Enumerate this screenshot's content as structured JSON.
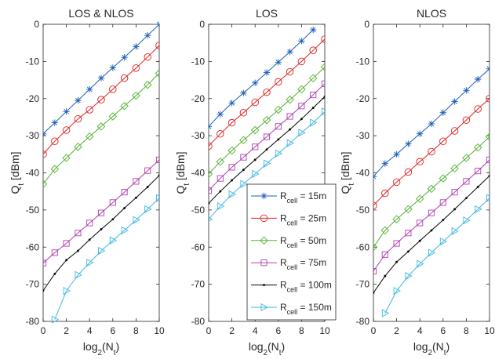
{
  "figure": {
    "series_names": [
      "15m",
      "25m",
      "50m",
      "75m",
      "100m",
      "150m"
    ],
    "legend_prefix": "R",
    "legend_subscript": "cell",
    "legend_sep": " = ",
    "colors": [
      "#1f5fb4",
      "#e02020",
      "#50b030",
      "#b040b0",
      "#000000",
      "#40b8e0"
    ],
    "markers": [
      "star",
      "circle",
      "diamond",
      "square",
      "dot",
      "triangle-right"
    ]
  },
  "chart_data": [
    {
      "type": "line",
      "title": "LOS & NLOS",
      "xlabel": "log2(Nt)",
      "ylabel": "Qt [dBm]",
      "xlim": [
        0,
        10
      ],
      "ylim": [
        -80,
        0
      ],
      "xticks": [
        0,
        2,
        4,
        6,
        8,
        10
      ],
      "yticks": [
        0,
        -10,
        -20,
        -30,
        -40,
        -50,
        -60,
        -70,
        -80
      ],
      "x": [
        0,
        1,
        2,
        3,
        4,
        5,
        6,
        7,
        8,
        9,
        10
      ],
      "legend": "none",
      "series": [
        {
          "values": [
            -29.5,
            -26.5,
            -23.5,
            -20.5,
            -17.5,
            -14.5,
            -11.7,
            -8.9,
            -6.0,
            -3.0,
            0
          ]
        },
        {
          "values": [
            -35,
            -31.5,
            -28.5,
            -25.5,
            -23.0,
            -20.3,
            -17.5,
            -14.5,
            -11.8,
            -8.8,
            -5.7
          ]
        },
        {
          "values": [
            -43,
            -39,
            -36,
            -33,
            -30.2,
            -27.5,
            -24.8,
            -22.0,
            -19.2,
            -16.3,
            -13.2
          ]
        },
        {
          "values": [
            -64.3,
            -61.5,
            -59.0,
            -56.2,
            -53.5,
            -50.8,
            -48.0,
            -45.2,
            -42.3,
            -39.4,
            -36.5
          ]
        },
        {
          "values": [
            -71.7,
            -67.2,
            -63.5,
            -61.0,
            -58.0,
            -55.2,
            -52.5,
            -49.5,
            -46.7,
            -43.8,
            -40.7
          ]
        },
        {
          "values": [
            null,
            -79.5,
            -71.8,
            -67.5,
            -64.2,
            -61.0,
            -58.2,
            -55.5,
            -52.7,
            -49.8,
            -46.8
          ]
        }
      ]
    },
    {
      "type": "line",
      "title": "LOS",
      "xlabel": "log2(Nt)",
      "ylabel": "Qt [dBm]",
      "xlim": [
        0,
        10
      ],
      "ylim": [
        -80,
        0
      ],
      "xticks": [
        0,
        2,
        4,
        6,
        8,
        10
      ],
      "yticks": [
        0,
        -10,
        -20,
        -30,
        -40,
        -50,
        -60,
        -70,
        -80
      ],
      "x": [
        0,
        1,
        2,
        3,
        4,
        5,
        6,
        7,
        8,
        9,
        10
      ],
      "legend": "bottom-right",
      "series": [
        {
          "values": [
            -27.5,
            -24.2,
            -21.2,
            -18.5,
            -15.8,
            -13.0,
            -10.2,
            -7.4,
            -4.5,
            -1.5,
            null
          ]
        },
        {
          "values": [
            -32.8,
            -29.5,
            -26.5,
            -23.8,
            -21.0,
            -18.3,
            -15.5,
            -12.8,
            -10.0,
            -7.0,
            -4.0
          ]
        },
        {
          "values": [
            -40.3,
            -37.0,
            -34.0,
            -31.2,
            -28.5,
            -25.8,
            -23.0,
            -20.3,
            -17.5,
            -14.5,
            -11.5
          ]
        },
        {
          "values": [
            -44.8,
            -41.5,
            -38.5,
            -35.8,
            -33.0,
            -30.3,
            -27.5,
            -24.8,
            -22.0,
            -19.0,
            -16.0
          ]
        },
        {
          "values": [
            -48.2,
            -45.0,
            -42.0,
            -39.2,
            -36.5,
            -33.7,
            -31.0,
            -28.3,
            -25.5,
            -22.5,
            -19.5
          ]
        },
        {
          "values": [
            -52.5,
            -49.0,
            -45.8,
            -43.0,
            -40.3,
            -37.5,
            -34.8,
            -32.0,
            -29.2,
            -26.5,
            -23.5
          ]
        }
      ]
    },
    {
      "type": "line",
      "title": "NLOS",
      "xlabel": "log2(Nt)",
      "ylabel": "Qt [dBm]",
      "xlim": [
        0,
        10
      ],
      "ylim": [
        -80,
        0
      ],
      "xticks": [
        0,
        2,
        4,
        6,
        8,
        10
      ],
      "yticks": [
        0,
        -10,
        -20,
        -30,
        -40,
        -50,
        -60,
        -70,
        -80
      ],
      "x": [
        0,
        1,
        2,
        3,
        4,
        5,
        6,
        7,
        8,
        9,
        10
      ],
      "legend": "none",
      "series": [
        {
          "values": [
            -41.0,
            -37.5,
            -35.0,
            -32.2,
            -29.5,
            -26.8,
            -23.8,
            -20.8,
            -17.8,
            -14.8,
            -12.0
          ]
        },
        {
          "values": [
            -48.8,
            -45.5,
            -42.5,
            -39.8,
            -37.0,
            -34.3,
            -31.5,
            -28.7,
            -25.8,
            -22.8,
            -20.0
          ]
        },
        {
          "values": [
            -60.0,
            -55.5,
            -52.5,
            -49.8,
            -47.0,
            -44.3,
            -41.5,
            -38.8,
            -36.0,
            -33.2,
            -30.3
          ]
        },
        {
          "values": [
            -66.5,
            -62.0,
            -59.0,
            -56.2,
            -53.5,
            -50.8,
            -48.0,
            -45.2,
            -42.3,
            -39.5,
            -36.5
          ]
        },
        {
          "values": [
            -72.3,
            -67.8,
            -64.0,
            -61.2,
            -58.3,
            -55.5,
            -52.7,
            -49.8,
            -46.8,
            -43.8,
            -40.8
          ]
        },
        {
          "values": [
            null,
            -77.8,
            -71.8,
            -67.8,
            -64.5,
            -61.5,
            -58.5,
            -55.7,
            -52.8,
            -49.8,
            -46.8
          ]
        }
      ]
    }
  ]
}
